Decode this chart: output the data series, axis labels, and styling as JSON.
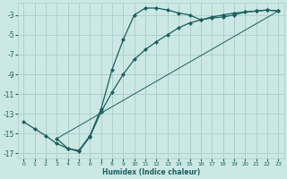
{
  "xlabel": "Humidex (Indice chaleur)",
  "xlim": [
    -0.5,
    23.5
  ],
  "ylim": [
    -17.5,
    -1.8
  ],
  "yticks": [
    -17,
    -15,
    -13,
    -11,
    -9,
    -7,
    -5,
    -3
  ],
  "xticks": [
    0,
    1,
    2,
    3,
    4,
    5,
    6,
    7,
    8,
    9,
    10,
    11,
    12,
    13,
    14,
    15,
    16,
    17,
    18,
    19,
    20,
    21,
    22,
    23
  ],
  "bg_color": "#cce8e4",
  "grid_color": "#aacccc",
  "line_color": "#1a5f5f",
  "line1_x": [
    0,
    1,
    2,
    3,
    4,
    5,
    6,
    7,
    8,
    9,
    10,
    11,
    12,
    13,
    14,
    15,
    16,
    17,
    18,
    19,
    20,
    21,
    22,
    23
  ],
  "line1_y": [
    -13.8,
    -14.5,
    -15.2,
    -16.0,
    -16.5,
    -16.7,
    -15.2,
    -12.5,
    -8.5,
    -5.5,
    -3.0,
    -2.3,
    -2.3,
    -2.5,
    -2.8,
    -3.0,
    -3.5,
    -3.3,
    -3.2,
    -3.0,
    -2.7,
    -2.6,
    -2.5,
    -2.6
  ],
  "line2_x": [
    3,
    4,
    5,
    6,
    7,
    8,
    9,
    10,
    11,
    12,
    13,
    14,
    15,
    16,
    17,
    18,
    19,
    20,
    21,
    22,
    23
  ],
  "line2_y": [
    -15.5,
    -16.5,
    -16.8,
    -15.3,
    -12.8,
    -10.8,
    -9.0,
    -7.5,
    -6.5,
    -5.7,
    -5.0,
    -4.3,
    -3.8,
    -3.5,
    -3.2,
    -3.0,
    -2.8,
    -2.7,
    -2.6,
    -2.5,
    -2.6
  ],
  "line3_x": [
    3,
    23
  ],
  "line3_y": [
    -15.5,
    -2.6
  ]
}
